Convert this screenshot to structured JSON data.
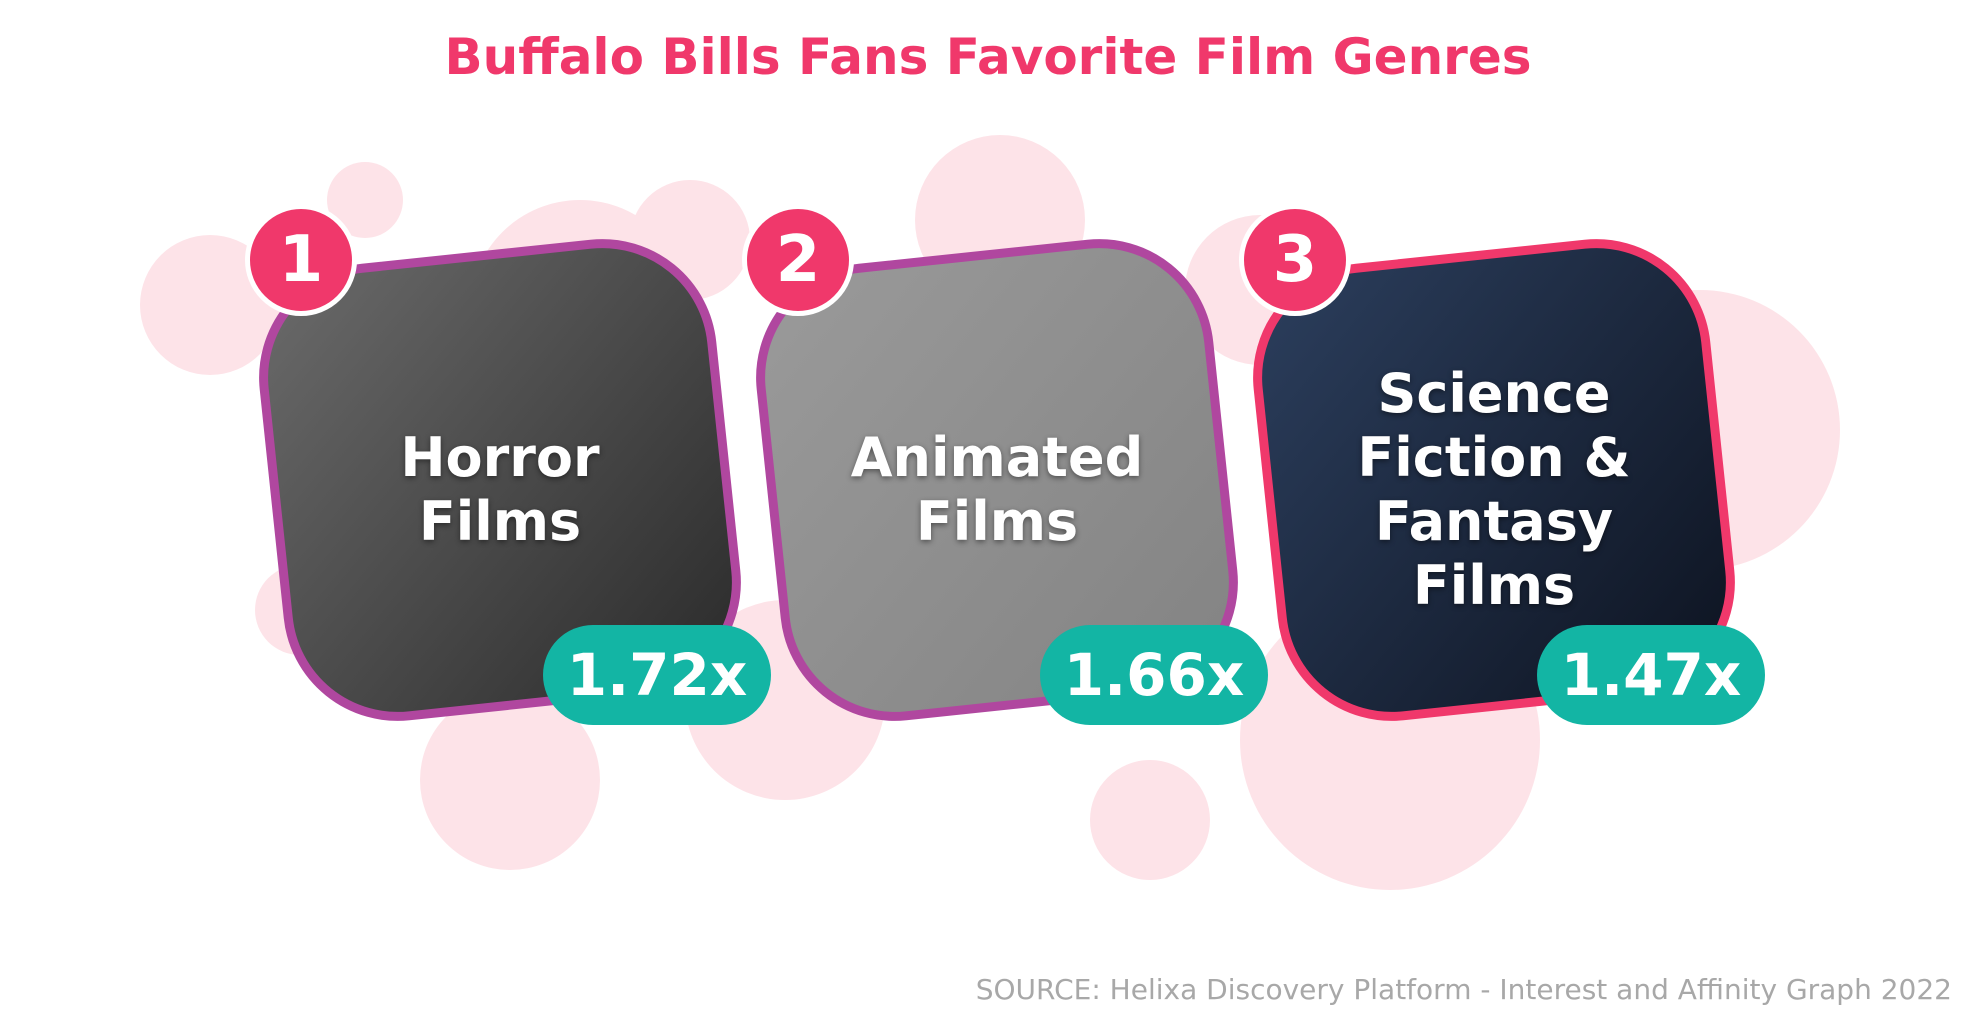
{
  "header": {
    "title": "Buffalo Bills Fans Favorite Film Genres"
  },
  "items": [
    {
      "rank": "1",
      "label": "Horror Films",
      "value": "1.72x"
    },
    {
      "rank": "2",
      "label": "Animated Films",
      "value": "1.66x"
    },
    {
      "rank": "3",
      "label": "Science Fiction & Fantasy Films",
      "value": "1.47x"
    }
  ],
  "footer": {
    "source": "SOURCE: Helixa Discovery Platform - Interest and Affinity Graph 2022"
  }
}
